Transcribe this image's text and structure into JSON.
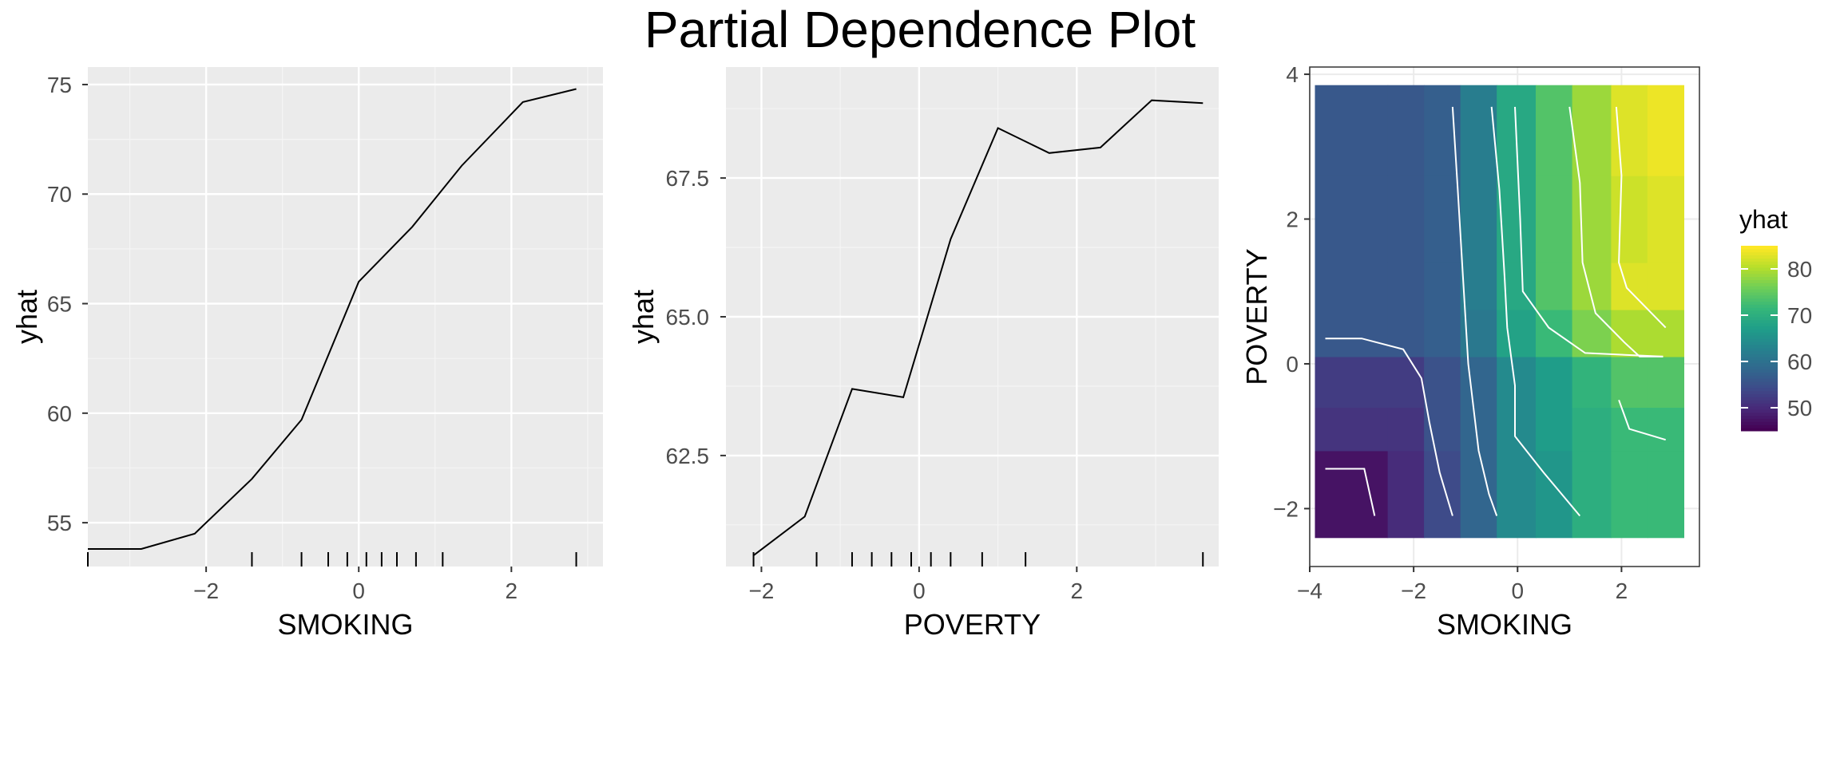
{
  "title": "Partial Dependence Plot",
  "chart_data": [
    {
      "type": "line",
      "xlabel": "SMOKING",
      "ylabel": "yhat",
      "xlim": [
        -3.55,
        3.2
      ],
      "ylim": [
        53.0,
        75.8
      ],
      "xticks": [
        -2,
        0,
        2
      ],
      "yticks": [
        55,
        60,
        65,
        70,
        75
      ],
      "x": [
        -3.55,
        -2.85,
        -2.15,
        -1.4,
        -0.75,
        0.0,
        0.7,
        1.35,
        2.15,
        2.85
      ],
      "y": [
        53.8,
        53.8,
        54.5,
        57.0,
        59.7,
        66.0,
        68.5,
        71.3,
        74.2,
        74.8
      ],
      "rug": [
        -3.55,
        -1.4,
        -0.75,
        -0.4,
        -0.15,
        0.1,
        0.3,
        0.5,
        0.75,
        1.1,
        2.85
      ],
      "grid": true,
      "background": "#ebebeb",
      "line_color": "#000000"
    },
    {
      "type": "line",
      "xlabel": "POVERTY",
      "ylabel": "yhat",
      "xlim": [
        -2.45,
        3.8
      ],
      "ylim": [
        60.5,
        69.5
      ],
      "xticks": [
        -2,
        0,
        2
      ],
      "yticks": [
        62.5,
        65.0,
        67.5
      ],
      "ytick_labels": [
        "62.5",
        "65.0",
        "67.5"
      ],
      "x": [
        -2.1,
        -1.45,
        -0.85,
        -0.2,
        0.4,
        1.0,
        1.65,
        2.3,
        2.95,
        3.6
      ],
      "y": [
        60.7,
        61.4,
        63.7,
        63.55,
        66.4,
        68.4,
        67.95,
        68.05,
        68.9,
        68.85
      ],
      "rug": [
        -2.1,
        -1.3,
        -0.85,
        -0.6,
        -0.35,
        -0.1,
        0.15,
        0.4,
        0.8,
        1.35,
        3.6
      ],
      "grid": true,
      "background": "#ebebeb",
      "line_color": "#000000"
    },
    {
      "type": "heatmap",
      "xlabel": "SMOKING",
      "ylabel": "POVERTY",
      "xlim": [
        -4.0,
        3.5
      ],
      "ylim": [
        -2.8,
        4.1
      ],
      "xticks": [
        -4,
        -2,
        0,
        2
      ],
      "yticks": [
        -2,
        0,
        2,
        4
      ],
      "x_edges": [
        -3.9,
        -2.5,
        -1.8,
        -1.1,
        -0.4,
        0.35,
        1.05,
        1.8,
        2.5,
        3.2
      ],
      "y_edges": [
        -2.4,
        -1.2,
        -0.6,
        0.1,
        0.75,
        1.4,
        2.6,
        3.85
      ],
      "values": [
        [
          47,
          50,
          54,
          58,
          64,
          66,
          70,
          72,
          72
        ],
        [
          51,
          51,
          55,
          58,
          64,
          67,
          70,
          72,
          72
        ],
        [
          52,
          52,
          55,
          58,
          64,
          67,
          71,
          74,
          74
        ],
        [
          56,
          56,
          57,
          61,
          68,
          72,
          77,
          80,
          80
        ],
        [
          56,
          56,
          57,
          62,
          69,
          74,
          79,
          83,
          83
        ],
        [
          56,
          56,
          57,
          62,
          69,
          74,
          79,
          82,
          83
        ],
        [
          56,
          56,
          57,
          62,
          69,
          74,
          79,
          83,
          84
        ]
      ],
      "contours": [
        [
          [
            -3.7,
            -1.45
          ],
          [
            -2.95,
            -1.45
          ],
          [
            -2.75,
            -2.1
          ]
        ],
        [
          [
            -3.7,
            0.35
          ],
          [
            -3.0,
            0.35
          ],
          [
            -2.2,
            0.2
          ],
          [
            -1.85,
            -0.2
          ],
          [
            -1.7,
            -0.8
          ],
          [
            -1.5,
            -1.5
          ],
          [
            -1.25,
            -2.1
          ]
        ],
        [
          [
            -1.25,
            3.55
          ],
          [
            -1.15,
            2.4
          ],
          [
            -1.05,
            1.2
          ],
          [
            -0.95,
            0.0
          ],
          [
            -0.75,
            -1.2
          ],
          [
            -0.55,
            -1.8
          ],
          [
            -0.4,
            -2.1
          ]
        ],
        [
          [
            -0.5,
            3.55
          ],
          [
            -0.35,
            2.4
          ],
          [
            -0.25,
            1.2
          ],
          [
            -0.2,
            0.5
          ],
          [
            -0.05,
            -0.3
          ],
          [
            -0.05,
            -1.0
          ],
          [
            0.5,
            -1.5
          ],
          [
            1.2,
            -2.1
          ]
        ],
        [
          [
            -0.05,
            3.55
          ],
          [
            0.05,
            2.0
          ],
          [
            0.1,
            1.0
          ],
          [
            0.6,
            0.5
          ],
          [
            1.3,
            0.15
          ],
          [
            2.8,
            0.1
          ]
        ],
        [
          [
            1.0,
            3.55
          ],
          [
            1.2,
            2.5
          ],
          [
            1.25,
            1.4
          ],
          [
            1.5,
            0.7
          ],
          [
            2.05,
            0.3
          ],
          [
            2.35,
            0.1
          ],
          [
            2.8,
            0.1
          ]
        ],
        [
          [
            1.9,
            3.55
          ],
          [
            2.0,
            2.6
          ],
          [
            1.95,
            1.4
          ],
          [
            2.1,
            1.05
          ],
          [
            2.85,
            0.5
          ]
        ],
        [
          [
            1.95,
            -0.5
          ],
          [
            2.15,
            -0.9
          ],
          [
            2.85,
            -1.05
          ]
        ]
      ],
      "contour_color": "#ffffff",
      "legend": {
        "title": "yhat",
        "min": 45,
        "max": 85,
        "ticks": [
          50,
          60,
          70,
          80
        ],
        "placement": "right"
      }
    }
  ]
}
